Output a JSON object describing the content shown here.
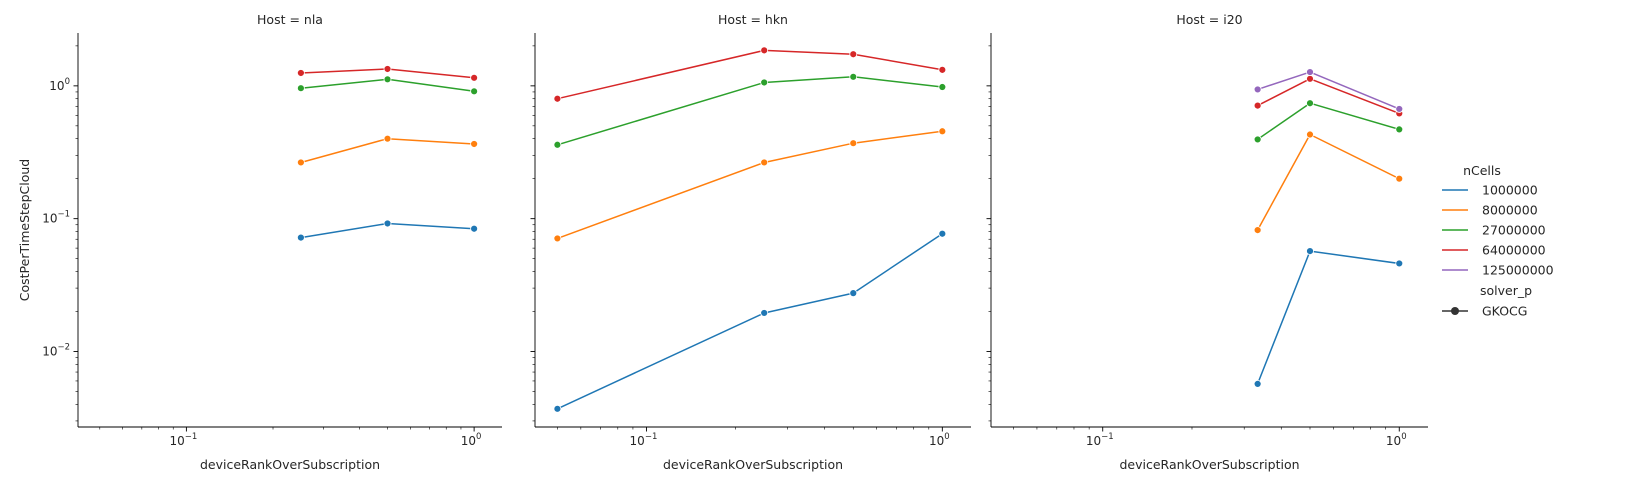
{
  "chart_data": {
    "type": "line",
    "xlabel": "deviceRankOverSubscription",
    "ylabel": "CostPerTimeStepCloud",
    "xscale": "log",
    "yscale": "log",
    "xlim": [
      0.042,
      1.25
    ],
    "ylim": [
      0.0027,
      2.5
    ],
    "sharey": true,
    "grid": false,
    "legend": {
      "placement": "right",
      "hue_title": "nCells",
      "hue_entries": [
        {
          "label": "1000000",
          "color": "#1f77b4"
        },
        {
          "label": "8000000",
          "color": "#ff7f0e"
        },
        {
          "label": "27000000",
          "color": "#2ca02c"
        },
        {
          "label": "64000000",
          "color": "#d62728"
        },
        {
          "label": "125000000",
          "color": "#9467bd"
        }
      ],
      "style_title": "solver_p",
      "style_entries": [
        {
          "label": "GKOCG",
          "color": "#333333"
        }
      ]
    },
    "facets": [
      {
        "title": "Host = nla",
        "x_ticks": [
          {
            "value": 0.1,
            "base": "10",
            "exp": "−1"
          },
          {
            "value": 1,
            "base": "10",
            "exp": "0"
          }
        ],
        "y_ticks": [
          {
            "value": 1,
            "base": "10",
            "exp": "0"
          },
          {
            "value": 0.1,
            "base": "10",
            "exp": "−1"
          },
          {
            "value": 0.01,
            "base": "10",
            "exp": "−2"
          }
        ],
        "series": [
          {
            "name": "1000000",
            "x": [
              0.25,
              0.5,
              1.0
            ],
            "y": [
              0.072,
              0.092,
              0.084
            ]
          },
          {
            "name": "8000000",
            "x": [
              0.25,
              0.5,
              1.0
            ],
            "y": [
              0.265,
              0.4,
              0.365
            ]
          },
          {
            "name": "27000000",
            "x": [
              0.25,
              0.5,
              1.0
            ],
            "y": [
              0.96,
              1.12,
              0.91
            ]
          },
          {
            "name": "64000000",
            "x": [
              0.25,
              0.5,
              1.0
            ],
            "y": [
              1.25,
              1.34,
              1.15
            ]
          }
        ]
      },
      {
        "title": "Host = hkn",
        "x_ticks": [
          {
            "value": 0.1,
            "base": "10",
            "exp": "−1"
          },
          {
            "value": 1,
            "base": "10",
            "exp": "0"
          }
        ],
        "y_ticks": [],
        "series": [
          {
            "name": "1000000",
            "x": [
              0.05,
              0.25,
              0.5,
              1.0
            ],
            "y": [
              0.0037,
              0.0195,
              0.0275,
              0.077
            ]
          },
          {
            "name": "8000000",
            "x": [
              0.05,
              0.25,
              0.5,
              1.0
            ],
            "y": [
              0.071,
              0.265,
              0.37,
              0.455
            ]
          },
          {
            "name": "27000000",
            "x": [
              0.05,
              0.25,
              0.5,
              1.0
            ],
            "y": [
              0.36,
              1.06,
              1.17,
              0.98
            ]
          },
          {
            "name": "64000000",
            "x": [
              0.05,
              0.25,
              0.5,
              1.0
            ],
            "y": [
              0.8,
              1.85,
              1.73,
              1.32
            ]
          }
        ]
      },
      {
        "title": "Host = i20",
        "x_ticks": [
          {
            "value": 0.1,
            "base": "10",
            "exp": "−1"
          },
          {
            "value": 1,
            "base": "10",
            "exp": "0"
          }
        ],
        "y_ticks": [],
        "series": [
          {
            "name": "1000000",
            "x": [
              0.333,
              0.5,
              1.0
            ],
            "y": [
              0.0057,
              0.057,
              0.046
            ]
          },
          {
            "name": "8000000",
            "x": [
              0.333,
              0.5,
              1.0
            ],
            "y": [
              0.082,
              0.43,
              0.2
            ]
          },
          {
            "name": "27000000",
            "x": [
              0.333,
              0.5,
              1.0
            ],
            "y": [
              0.395,
              0.74,
              0.47
            ]
          },
          {
            "name": "64000000",
            "x": [
              0.333,
              0.5,
              1.0
            ],
            "y": [
              0.71,
              1.13,
              0.62
            ]
          },
          {
            "name": "125000000",
            "x": [
              0.333,
              0.5,
              1.0
            ],
            "y": [
              0.94,
              1.27,
              0.67
            ]
          }
        ]
      }
    ]
  }
}
